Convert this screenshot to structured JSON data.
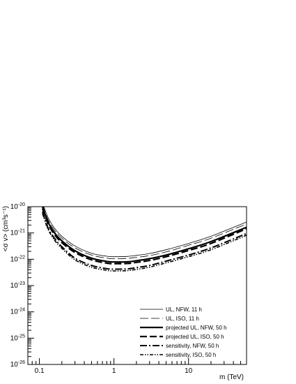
{
  "chart_data": {
    "type": "line",
    "xlabel": "m (TeV)",
    "ylabel": "<σ v> (cm³s⁻¹)",
    "xscale": "log",
    "yscale": "log",
    "xlim": [
      0.07,
      60
    ],
    "ylim": [
      1e-26,
      1e-20
    ],
    "x_ticks": [
      {
        "value": 0.1,
        "label": "0.1"
      },
      {
        "value": 1,
        "label": "1"
      },
      {
        "value": 10,
        "label": "10"
      }
    ],
    "y_ticks": [
      {
        "value": -26,
        "base": "10",
        "exp": "-26"
      },
      {
        "value": -25,
        "base": "10",
        "exp": "-25"
      },
      {
        "value": -24,
        "base": "10",
        "exp": "-24"
      },
      {
        "value": -23,
        "base": "10",
        "exp": "-23"
      },
      {
        "value": -22,
        "base": "10",
        "exp": "-22"
      },
      {
        "value": -21,
        "base": "10",
        "exp": "-21"
      },
      {
        "value": -20,
        "base": "10",
        "exp": "-20"
      }
    ],
    "grid": false,
    "legend_position": "bottom-right",
    "series": [
      {
        "name": "UL, NFW, 11 h",
        "style": "thin-solid",
        "x": [
          0.11,
          0.13,
          0.16,
          0.2,
          0.3,
          0.5,
          0.8,
          1.0,
          1.5,
          2,
          3,
          5,
          10,
          20,
          60
        ],
        "y": [
          1.4e-20,
          4e-21,
          1.5e-21,
          7.5e-22,
          3.2e-22,
          1.7e-22,
          1.3e-22,
          1.25e-22,
          1.28e-22,
          1.4e-22,
          1.65e-22,
          2.3e-22,
          4e-22,
          7.5e-22,
          2.6e-21
        ]
      },
      {
        "name": "UL, ISO, 11 h",
        "style": "thin-dashed",
        "x": [
          0.11,
          0.13,
          0.16,
          0.2,
          0.3,
          0.5,
          0.8,
          1.0,
          1.5,
          2,
          3,
          5,
          10,
          20,
          60
        ],
        "y": [
          1.2e-20,
          3.3e-21,
          1.25e-21,
          6.3e-22,
          2.7e-22,
          1.45e-22,
          1.1e-22,
          1.05e-22,
          1.08e-22,
          1.18e-22,
          1.38e-22,
          1.9e-22,
          3.4e-22,
          6.3e-22,
          2.2e-21
        ]
      },
      {
        "name": "projected UL, NFW, 50 h",
        "style": "thick-solid",
        "x": [
          0.11,
          0.13,
          0.16,
          0.2,
          0.3,
          0.5,
          0.8,
          1.0,
          1.5,
          2,
          3,
          5,
          10,
          20,
          60
        ],
        "y": [
          1e-20,
          2.7e-21,
          1e-21,
          5e-22,
          2.1e-22,
          1.1e-22,
          8.3e-23,
          7.9e-23,
          8e-23,
          8.8e-23,
          1.05e-22,
          1.45e-22,
          2.5e-22,
          4.7e-22,
          1.65e-21
        ]
      },
      {
        "name": "projected UL, ISO, 50 h",
        "style": "thick-dashed",
        "x": [
          0.11,
          0.13,
          0.16,
          0.2,
          0.3,
          0.5,
          0.8,
          1.0,
          1.5,
          2,
          3,
          5,
          10,
          20,
          60
        ],
        "y": [
          8.5e-21,
          2.3e-21,
          8.6e-22,
          4.3e-22,
          1.8e-22,
          9.5e-23,
          7.1e-23,
          6.8e-23,
          6.9e-23,
          7.6e-23,
          9e-23,
          1.25e-22,
          2.15e-22,
          4e-22,
          1.45e-21
        ]
      },
      {
        "name": "sensitivity, NFW, 50 h",
        "style": "thick-dashdot",
        "x": [
          0.11,
          0.13,
          0.16,
          0.2,
          0.3,
          0.5,
          0.8,
          1.0,
          1.5,
          2,
          3,
          5,
          10,
          20,
          60
        ],
        "y": [
          6.5e-21,
          1.6e-21,
          6.2e-22,
          3e-22,
          1.1e-22,
          5.8e-23,
          4.4e-23,
          4.2e-23,
          4.3e-23,
          4.8e-23,
          5.8e-23,
          8.5e-23,
          1.45e-22,
          2.7e-22,
          9.5e-22
        ]
      },
      {
        "name": "sensitivity, ISO, 50 h",
        "style": "dashdotdot",
        "x": [
          0.11,
          0.13,
          0.16,
          0.2,
          0.3,
          0.5,
          0.8,
          1.0,
          1.5,
          2,
          3,
          5,
          10,
          20,
          60
        ],
        "y": [
          5.5e-21,
          1.4e-21,
          5.3e-22,
          2.6e-22,
          9.5e-23,
          5e-23,
          3.8e-23,
          3.6e-23,
          3.7e-23,
          4.1e-23,
          5e-23,
          7.3e-23,
          1.25e-22,
          2.3e-22,
          8.2e-22
        ]
      }
    ]
  }
}
